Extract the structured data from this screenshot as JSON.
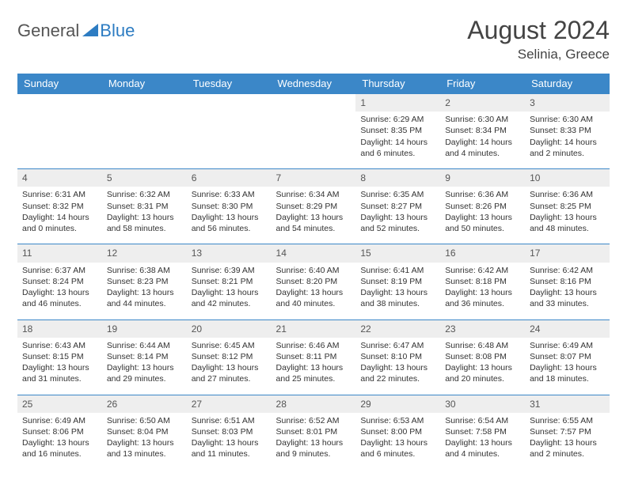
{
  "brand": {
    "general": "General",
    "blue": "Blue"
  },
  "title": "August 2024",
  "location": "Selinia, Greece",
  "colors": {
    "header_bg": "#3b87c8",
    "header_fg": "#ffffff",
    "daynum_bg": "#eeeeee",
    "rule": "#3b87c8",
    "logo_blue": "#2d7cc2",
    "text": "#333333"
  },
  "weekdays": [
    "Sunday",
    "Monday",
    "Tuesday",
    "Wednesday",
    "Thursday",
    "Friday",
    "Saturday"
  ],
  "weeks": [
    [
      {
        "empty": true
      },
      {
        "empty": true
      },
      {
        "empty": true
      },
      {
        "empty": true
      },
      {
        "day": "1",
        "sunrise": "Sunrise: 6:29 AM",
        "sunset": "Sunset: 8:35 PM",
        "daylight": "Daylight: 14 hours and 6 minutes."
      },
      {
        "day": "2",
        "sunrise": "Sunrise: 6:30 AM",
        "sunset": "Sunset: 8:34 PM",
        "daylight": "Daylight: 14 hours and 4 minutes."
      },
      {
        "day": "3",
        "sunrise": "Sunrise: 6:30 AM",
        "sunset": "Sunset: 8:33 PM",
        "daylight": "Daylight: 14 hours and 2 minutes."
      }
    ],
    [
      {
        "day": "4",
        "sunrise": "Sunrise: 6:31 AM",
        "sunset": "Sunset: 8:32 PM",
        "daylight": "Daylight: 14 hours and 0 minutes."
      },
      {
        "day": "5",
        "sunrise": "Sunrise: 6:32 AM",
        "sunset": "Sunset: 8:31 PM",
        "daylight": "Daylight: 13 hours and 58 minutes."
      },
      {
        "day": "6",
        "sunrise": "Sunrise: 6:33 AM",
        "sunset": "Sunset: 8:30 PM",
        "daylight": "Daylight: 13 hours and 56 minutes."
      },
      {
        "day": "7",
        "sunrise": "Sunrise: 6:34 AM",
        "sunset": "Sunset: 8:29 PM",
        "daylight": "Daylight: 13 hours and 54 minutes."
      },
      {
        "day": "8",
        "sunrise": "Sunrise: 6:35 AM",
        "sunset": "Sunset: 8:27 PM",
        "daylight": "Daylight: 13 hours and 52 minutes."
      },
      {
        "day": "9",
        "sunrise": "Sunrise: 6:36 AM",
        "sunset": "Sunset: 8:26 PM",
        "daylight": "Daylight: 13 hours and 50 minutes."
      },
      {
        "day": "10",
        "sunrise": "Sunrise: 6:36 AM",
        "sunset": "Sunset: 8:25 PM",
        "daylight": "Daylight: 13 hours and 48 minutes."
      }
    ],
    [
      {
        "day": "11",
        "sunrise": "Sunrise: 6:37 AM",
        "sunset": "Sunset: 8:24 PM",
        "daylight": "Daylight: 13 hours and 46 minutes."
      },
      {
        "day": "12",
        "sunrise": "Sunrise: 6:38 AM",
        "sunset": "Sunset: 8:23 PM",
        "daylight": "Daylight: 13 hours and 44 minutes."
      },
      {
        "day": "13",
        "sunrise": "Sunrise: 6:39 AM",
        "sunset": "Sunset: 8:21 PM",
        "daylight": "Daylight: 13 hours and 42 minutes."
      },
      {
        "day": "14",
        "sunrise": "Sunrise: 6:40 AM",
        "sunset": "Sunset: 8:20 PM",
        "daylight": "Daylight: 13 hours and 40 minutes."
      },
      {
        "day": "15",
        "sunrise": "Sunrise: 6:41 AM",
        "sunset": "Sunset: 8:19 PM",
        "daylight": "Daylight: 13 hours and 38 minutes."
      },
      {
        "day": "16",
        "sunrise": "Sunrise: 6:42 AM",
        "sunset": "Sunset: 8:18 PM",
        "daylight": "Daylight: 13 hours and 36 minutes."
      },
      {
        "day": "17",
        "sunrise": "Sunrise: 6:42 AM",
        "sunset": "Sunset: 8:16 PM",
        "daylight": "Daylight: 13 hours and 33 minutes."
      }
    ],
    [
      {
        "day": "18",
        "sunrise": "Sunrise: 6:43 AM",
        "sunset": "Sunset: 8:15 PM",
        "daylight": "Daylight: 13 hours and 31 minutes."
      },
      {
        "day": "19",
        "sunrise": "Sunrise: 6:44 AM",
        "sunset": "Sunset: 8:14 PM",
        "daylight": "Daylight: 13 hours and 29 minutes."
      },
      {
        "day": "20",
        "sunrise": "Sunrise: 6:45 AM",
        "sunset": "Sunset: 8:12 PM",
        "daylight": "Daylight: 13 hours and 27 minutes."
      },
      {
        "day": "21",
        "sunrise": "Sunrise: 6:46 AM",
        "sunset": "Sunset: 8:11 PM",
        "daylight": "Daylight: 13 hours and 25 minutes."
      },
      {
        "day": "22",
        "sunrise": "Sunrise: 6:47 AM",
        "sunset": "Sunset: 8:10 PM",
        "daylight": "Daylight: 13 hours and 22 minutes."
      },
      {
        "day": "23",
        "sunrise": "Sunrise: 6:48 AM",
        "sunset": "Sunset: 8:08 PM",
        "daylight": "Daylight: 13 hours and 20 minutes."
      },
      {
        "day": "24",
        "sunrise": "Sunrise: 6:49 AM",
        "sunset": "Sunset: 8:07 PM",
        "daylight": "Daylight: 13 hours and 18 minutes."
      }
    ],
    [
      {
        "day": "25",
        "sunrise": "Sunrise: 6:49 AM",
        "sunset": "Sunset: 8:06 PM",
        "daylight": "Daylight: 13 hours and 16 minutes."
      },
      {
        "day": "26",
        "sunrise": "Sunrise: 6:50 AM",
        "sunset": "Sunset: 8:04 PM",
        "daylight": "Daylight: 13 hours and 13 minutes."
      },
      {
        "day": "27",
        "sunrise": "Sunrise: 6:51 AM",
        "sunset": "Sunset: 8:03 PM",
        "daylight": "Daylight: 13 hours and 11 minutes."
      },
      {
        "day": "28",
        "sunrise": "Sunrise: 6:52 AM",
        "sunset": "Sunset: 8:01 PM",
        "daylight": "Daylight: 13 hours and 9 minutes."
      },
      {
        "day": "29",
        "sunrise": "Sunrise: 6:53 AM",
        "sunset": "Sunset: 8:00 PM",
        "daylight": "Daylight: 13 hours and 6 minutes."
      },
      {
        "day": "30",
        "sunrise": "Sunrise: 6:54 AM",
        "sunset": "Sunset: 7:58 PM",
        "daylight": "Daylight: 13 hours and 4 minutes."
      },
      {
        "day": "31",
        "sunrise": "Sunrise: 6:55 AM",
        "sunset": "Sunset: 7:57 PM",
        "daylight": "Daylight: 13 hours and 2 minutes."
      }
    ]
  ]
}
